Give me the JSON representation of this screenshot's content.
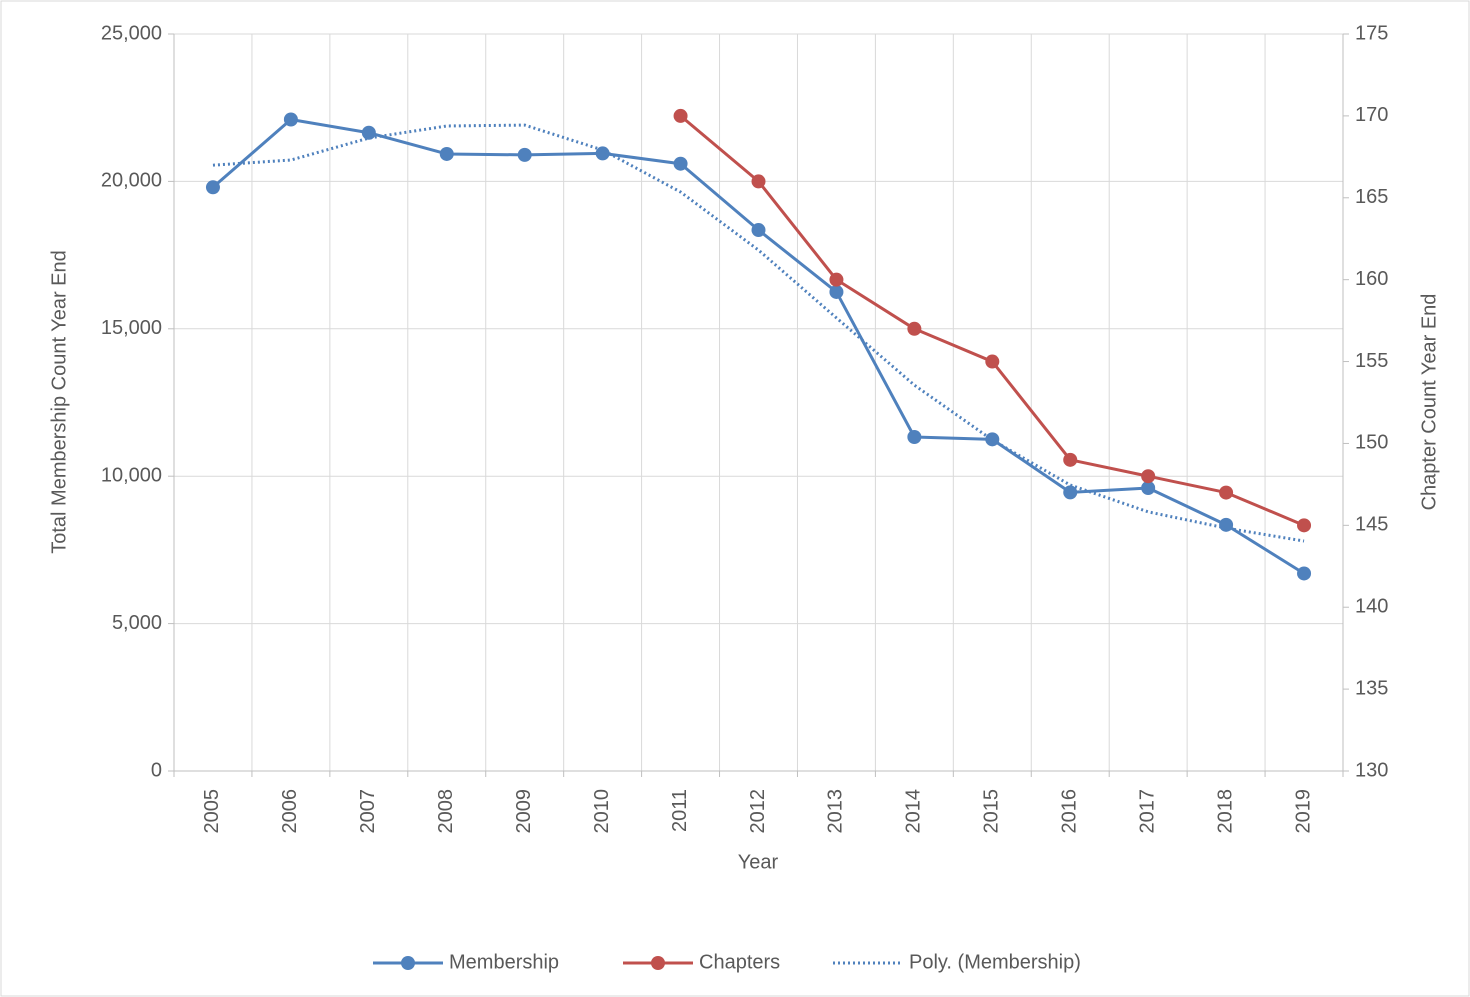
{
  "chart_data": {
    "type": "line",
    "x_label": "Year",
    "y_label": "Total Membership Count Year End",
    "y2_label": "Chapter Count Year End",
    "categories": [
      "2005",
      "2006",
      "2007",
      "2008",
      "2009",
      "2010",
      "2011",
      "2012",
      "2013",
      "2014",
      "2015",
      "2016",
      "2017",
      "2018",
      "2019"
    ],
    "series": [
      {
        "name": "Membership",
        "color": "#4f81bd",
        "style": "solid-markers",
        "values": [
          19800,
          22100,
          21650,
          20930,
          20900,
          20950,
          20600,
          18350,
          16250,
          11330,
          11250,
          9450,
          9600,
          8350,
          6700
        ]
      },
      {
        "name": "Chapters",
        "color": "#c0504d",
        "style": "solid-markers",
        "axis": "y2",
        "values": [
          null,
          null,
          null,
          null,
          null,
          null,
          170,
          166,
          160,
          157,
          155,
          149,
          148,
          147,
          145
        ]
      },
      {
        "name": "Poly. (Membership)",
        "color": "#4f81bd",
        "style": "dotted",
        "values": [
          20550,
          20725,
          21470,
          21880,
          21910,
          21065,
          19640,
          17670,
          15370,
          13090,
          11230,
          9700,
          8790,
          8240,
          7800
        ]
      }
    ],
    "ylim": [
      0,
      25000
    ],
    "yticks": [
      0,
      {
        "value": 5000,
        "label": "5,000"
      },
      {
        "value": 10000,
        "label": "10,000"
      },
      {
        "value": 15000,
        "label": "15,000"
      },
      {
        "value": 20000,
        "label": "20,000"
      },
      {
        "value": 25000,
        "label": "25,000"
      }
    ],
    "y2lim": [
      130,
      175
    ],
    "y2ticks": [
      130,
      135,
      140,
      145,
      150,
      155,
      160,
      165,
      170,
      175
    ],
    "grid": true,
    "legend": "bottom"
  }
}
